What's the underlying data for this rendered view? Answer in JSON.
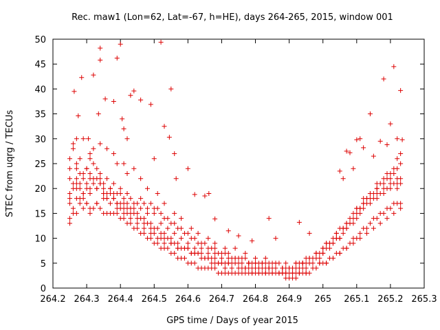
{
  "chart_data": {
    "type": "scatter",
    "title": "Rec. maw1 (Lon=62, Lat=-67, h=HE), days 264-265, 2015, window 001",
    "xlabel": "GPS time / Days of year 2015",
    "ylabel": "STEC from uqrg / TECUs",
    "xlim": [
      264.2,
      265.3
    ],
    "ylim": [
      0,
      50
    ],
    "xticks": [
      "264.2",
      "264.3",
      "264.4",
      "264.5",
      "264.6",
      "264.7",
      "264.8",
      "264.9",
      "265",
      "265.1",
      "265.2",
      "265.3"
    ],
    "yticks": [
      "0",
      "5",
      "10",
      "15",
      "20",
      "25",
      "30",
      "35",
      "40",
      "45",
      "50"
    ],
    "marker": "+",
    "color": "#dd0000",
    "grid": false,
    "series": [
      {
        "x": [
          264.25,
          264.25,
          264.26,
          264.27,
          264.28,
          264.29,
          264.3,
          264.31,
          264.32,
          264.33,
          264.34,
          264.35,
          264.36,
          264.37,
          264.38,
          264.39,
          264.4,
          264.41,
          264.42,
          264.43,
          264.44,
          264.45,
          264.46,
          264.47,
          264.48,
          264.49,
          264.5,
          264.51,
          264.52,
          264.53,
          264.54,
          264.55,
          264.56,
          264.57,
          264.58,
          264.59,
          264.6,
          264.61,
          264.62,
          264.63,
          264.64,
          264.65,
          264.66,
          264.67,
          264.68,
          264.69,
          264.7,
          264.71,
          264.72,
          264.73,
          264.74,
          264.75,
          264.76,
          264.77,
          264.78,
          264.79,
          264.8,
          264.81,
          264.82,
          264.83,
          264.84,
          264.85,
          264.86,
          264.87,
          264.88,
          264.89,
          264.9,
          264.91,
          264.92,
          264.93,
          264.94,
          264.95,
          264.96,
          264.97,
          264.98,
          264.99,
          265.0,
          265.01,
          265.02,
          265.03,
          265.04,
          265.05,
          265.06,
          265.07,
          265.08,
          265.09,
          265.1,
          265.11,
          265.12,
          265.13,
          265.14,
          265.15,
          265.16,
          265.17,
          265.18,
          265.19,
          265.2,
          265.21,
          265.22,
          265.23
        ],
        "y": [
          22,
          24,
          21,
          20,
          21,
          19,
          20,
          19,
          21,
          20,
          21,
          19,
          18,
          19,
          19,
          17,
          17,
          17,
          16,
          16,
          15,
          15,
          14,
          14,
          13,
          13,
          12,
          12,
          11,
          11,
          10,
          10,
          9,
          9,
          8,
          8,
          8,
          7,
          7,
          7,
          6,
          6,
          6,
          6,
          5,
          5,
          5,
          5,
          5,
          5,
          5,
          4,
          4,
          4,
          4,
          4,
          4,
          4,
          4,
          4,
          4,
          4,
          4,
          3,
          3,
          3,
          3,
          3,
          3,
          4,
          4,
          4,
          5,
          5,
          6,
          6,
          7,
          8,
          8,
          9,
          10,
          10,
          11,
          12,
          13,
          13,
          14,
          15,
          16,
          17,
          17,
          18,
          18,
          19,
          19,
          20,
          20,
          21,
          21,
          22
        ]
      },
      {
        "x": [
          264.25,
          264.26,
          264.27,
          264.28,
          264.29,
          264.3,
          264.31,
          264.32,
          264.33,
          264.34,
          264.35,
          264.36,
          264.37,
          264.38,
          264.39,
          264.4,
          264.41,
          264.42,
          264.43,
          264.44,
          264.45,
          264.46,
          264.47,
          264.48,
          264.49,
          264.5,
          264.51,
          264.52,
          264.53,
          264.54,
          264.55,
          264.56,
          264.57,
          264.58,
          264.59,
          264.6,
          264.61,
          264.62,
          264.63,
          264.64,
          264.65,
          264.66,
          264.67,
          264.68,
          264.69,
          264.7,
          264.71,
          264.72,
          264.73,
          264.74,
          264.75,
          264.76,
          264.77,
          264.78,
          264.79,
          264.8,
          264.81,
          264.82,
          264.83,
          264.84,
          264.85,
          264.86,
          264.87,
          264.88,
          264.89,
          264.9,
          264.91,
          264.92,
          264.93,
          264.94,
          264.95,
          264.96,
          264.97,
          264.98,
          264.99,
          265.0,
          265.01,
          265.02,
          265.03,
          265.04,
          265.05,
          265.06,
          265.07,
          265.08,
          265.09,
          265.1,
          265.11,
          265.12,
          265.13,
          265.14,
          265.15,
          265.16,
          265.17,
          265.18,
          265.19,
          265.2,
          265.21,
          265.22,
          265.23
        ],
        "y": [
          17,
          16,
          18,
          17,
          18,
          17,
          16,
          16,
          17,
          16,
          15,
          15,
          15,
          15,
          15,
          14,
          14,
          13,
          13,
          12,
          12,
          11,
          11,
          10,
          10,
          9,
          9,
          8,
          8,
          8,
          7,
          7,
          6,
          6,
          6,
          5,
          5,
          5,
          4,
          4,
          4,
          4,
          4,
          4,
          3,
          3,
          3,
          3,
          3,
          3,
          3,
          3,
          3,
          3,
          3,
          3,
          3,
          3,
          3,
          3,
          3,
          3,
          3,
          3,
          2,
          2,
          2,
          2,
          3,
          3,
          3,
          3,
          4,
          4,
          5,
          5,
          5,
          6,
          6,
          7,
          7,
          8,
          8,
          9,
          10,
          10,
          11,
          12,
          12,
          13,
          14,
          14,
          15,
          15,
          16,
          16,
          17,
          17,
          17
        ]
      },
      {
        "x": [
          264.25,
          264.26,
          264.27,
          264.28,
          264.29,
          264.3,
          264.31,
          264.32,
          264.33,
          264.34,
          264.35,
          264.36,
          264.37,
          264.38,
          264.39,
          264.4,
          264.41,
          264.42,
          264.43,
          264.44,
          264.45,
          264.46,
          264.47,
          264.48,
          264.49,
          264.5,
          264.51,
          264.52,
          264.53,
          264.54,
          264.55,
          264.56,
          264.57,
          264.58,
          264.59,
          264.6,
          264.61,
          264.62,
          264.63,
          264.64,
          264.65,
          264.66,
          264.67,
          264.68,
          264.69,
          264.7,
          264.71,
          264.72,
          264.73,
          264.74,
          264.75,
          264.76,
          264.77,
          264.78,
          264.79,
          264.8,
          264.81,
          264.82,
          264.83,
          264.84,
          264.85,
          264.86,
          264.87,
          264.88,
          264.89,
          264.9,
          264.91,
          264.92,
          264.93,
          264.94,
          264.95,
          264.96,
          264.97,
          264.98,
          264.99,
          265.0,
          265.01,
          265.02,
          265.03,
          265.04,
          265.05,
          265.06,
          265.07,
          265.08,
          265.09,
          265.1,
          265.11,
          265.12,
          265.13,
          265.14,
          265.15,
          265.16,
          265.17,
          265.18,
          265.19,
          265.2,
          265.21,
          265.22,
          265.23
        ],
        "y": [
          26,
          28,
          25,
          26,
          23,
          24,
          23,
          22,
          24,
          22,
          21,
          22,
          20,
          21,
          19,
          20,
          18,
          19,
          18,
          17,
          17,
          18,
          17,
          16,
          17,
          16,
          16,
          15,
          14,
          14,
          13,
          13,
          12,
          12,
          11,
          11,
          10,
          10,
          9,
          9,
          9,
          8,
          8,
          8,
          7,
          7,
          7,
          7,
          6,
          6,
          6,
          6,
          6,
          5,
          5,
          5,
          5,
          5,
          5,
          5,
          5,
          5,
          5,
          4,
          4,
          4,
          4,
          5,
          5,
          5,
          5,
          6,
          6,
          7,
          7,
          8,
          9,
          9,
          10,
          11,
          12,
          12,
          13,
          14,
          15,
          16,
          16,
          17,
          18,
          19,
          19,
          20,
          21,
          22,
          22,
          23,
          24,
          24,
          25
        ]
      },
      {
        "x": [
          264.25,
          264.27,
          264.29,
          264.31,
          264.33,
          264.35,
          264.37,
          264.39,
          264.41,
          264.43,
          264.45,
          264.47,
          264.49,
          264.51,
          264.53,
          264.55,
          264.57,
          264.59,
          264.61,
          264.63,
          264.65,
          264.67,
          264.69,
          264.71,
          264.73,
          264.75,
          264.77,
          264.79,
          264.81,
          264.83,
          264.85,
          264.87,
          264.89,
          264.91,
          264.93,
          264.95,
          264.97,
          264.99,
          265.01,
          265.03,
          265.05,
          265.07,
          265.09,
          265.11,
          265.13,
          265.15,
          265.17,
          265.19,
          265.21,
          265.23
        ],
        "y": [
          14,
          15,
          16,
          15,
          17,
          18,
          17,
          16,
          15,
          14,
          13,
          12,
          11,
          10,
          9,
          9,
          8,
          8,
          7,
          7,
          6,
          5,
          5,
          4,
          4,
          4,
          4,
          3,
          3,
          3,
          3,
          3,
          3,
          3,
          3,
          3,
          4,
          5,
          5,
          6,
          7,
          8,
          9,
          10,
          11,
          12,
          13,
          14,
          15,
          16
        ]
      },
      {
        "x": [
          264.26,
          264.27,
          264.29,
          264.31,
          264.32,
          264.34,
          264.36,
          264.38,
          264.39,
          264.41,
          264.42,
          264.44,
          264.46,
          264.48,
          264.51,
          264.53,
          264.56,
          264.58,
          264.61,
          264.63,
          264.66,
          264.68,
          264.71,
          264.74,
          264.77,
          264.8,
          264.83,
          264.86,
          264.89,
          264.92,
          264.95,
          264.98,
          265.01,
          265.04,
          265.07,
          265.1,
          265.13,
          265.16,
          265.19,
          265.22
        ],
        "y": [
          29,
          30,
          30,
          27,
          28,
          29,
          28,
          27,
          25,
          25,
          23,
          24,
          22,
          20,
          19,
          17,
          15,
          14,
          12,
          11,
          10,
          9,
          8,
          8,
          7,
          6,
          6,
          5,
          5,
          5,
          6,
          7,
          9,
          11,
          13,
          16,
          18,
          21,
          23,
          26
        ]
      },
      {
        "x": [
          264.25,
          264.27,
          264.28,
          264.3,
          264.31,
          264.33,
          264.34,
          264.35,
          264.36,
          264.38,
          264.39,
          264.4,
          264.41,
          264.42,
          264.43,
          264.45,
          264.47,
          264.49,
          264.5,
          264.52,
          264.53,
          264.55,
          264.57,
          264.6,
          264.62,
          264.64,
          264.66,
          264.68,
          264.7,
          264.72,
          264.75,
          264.78,
          264.81,
          264.84,
          264.86,
          264.88,
          264.91,
          264.94,
          264.97,
          265.0,
          265.03,
          265.05,
          265.07,
          265.09,
          265.11,
          265.12,
          265.14,
          265.16,
          265.18,
          265.2,
          265.21,
          265.22,
          265.23
        ],
        "y": [
          19,
          22,
          20,
          21,
          22,
          20,
          21,
          20,
          19,
          18,
          17,
          16,
          16,
          15,
          15,
          14,
          13,
          12,
          11,
          10,
          10,
          9,
          8,
          8,
          7,
          7,
          6,
          6,
          5,
          5,
          5,
          5,
          4,
          4,
          4,
          4,
          4,
          5,
          6,
          7,
          9,
          10,
          12,
          14,
          16,
          18,
          19,
          20,
          21,
          22,
          23,
          22,
          21
        ]
      },
      {
        "x": [
          264.25,
          264.25,
          264.26,
          264.26,
          264.27,
          264.27,
          264.28,
          264.28,
          264.29,
          264.29,
          264.3,
          264.3,
          264.31,
          264.31,
          264.32,
          264.33,
          264.34,
          264.35,
          264.36,
          264.37,
          264.38,
          264.4,
          264.42,
          264.44,
          264.46,
          264.48,
          264.5,
          264.52,
          264.54,
          264.56,
          264.58,
          264.6,
          264.62,
          264.64,
          264.66,
          264.68,
          264.7,
          264.72,
          264.74,
          264.76,
          264.78,
          264.8,
          264.82,
          264.84,
          264.86,
          264.88,
          264.9,
          264.92,
          264.94,
          264.96,
          264.98,
          265.0,
          265.02,
          265.04,
          265.06,
          265.08,
          265.1,
          265.12,
          265.14,
          265.16,
          265.18,
          265.2,
          265.22
        ],
        "y": [
          18,
          13,
          20,
          15,
          21,
          24,
          23,
          18,
          22,
          19,
          24,
          17,
          20,
          26,
          25,
          22,
          23,
          19,
          18,
          20,
          18,
          19,
          17,
          16,
          16,
          15,
          15,
          13,
          12,
          11,
          10,
          9,
          8,
          8,
          7,
          7,
          6,
          6,
          6,
          5,
          5,
          5,
          5,
          4,
          4,
          4,
          4,
          4,
          5,
          6,
          7,
          8,
          9,
          10,
          12,
          13,
          15,
          17,
          18,
          19,
          20,
          21,
          20
        ]
      },
      {
        "x": [
          264.263,
          264.275,
          264.285,
          264.305,
          264.32,
          264.335,
          264.34,
          264.34,
          264.355,
          264.38,
          264.39,
          264.4,
          264.405,
          264.41,
          264.42,
          264.43,
          264.44,
          264.46,
          264.49,
          264.5,
          264.52,
          264.53,
          264.545,
          264.55,
          264.56,
          264.565,
          264.6,
          264.62,
          264.65,
          264.662,
          264.68,
          264.72,
          264.75,
          264.79,
          264.84,
          264.86,
          264.93,
          264.96,
          265.05,
          265.06,
          265.07,
          265.08,
          265.09,
          265.1,
          265.11,
          265.12,
          265.14,
          265.15,
          265.17,
          265.18,
          265.19,
          265.2,
          265.21,
          265.22,
          265.23,
          265.235,
          265.23
        ],
        "y": [
          39.5,
          34.6,
          42.3,
          30.0,
          42.8,
          35.0,
          48.2,
          45.8,
          38.0,
          37.5,
          46.2,
          49.0,
          34.0,
          32.0,
          30.0,
          38.7,
          39.6,
          37.8,
          36.9,
          26.0,
          49.4,
          32.5,
          30.3,
          40.0,
          27.0,
          22.0,
          24.0,
          18.8,
          18.5,
          19.0,
          13.9,
          11.5,
          10.5,
          9.5,
          14.0,
          10.0,
          13.2,
          11.0,
          23.5,
          22.0,
          27.5,
          27.2,
          24.0,
          29.8,
          30.0,
          28.2,
          35.0,
          26.5,
          29.5,
          42.0,
          28.8,
          33.0,
          44.5,
          30.0,
          39.7,
          29.8,
          27.0
        ]
      }
    ]
  }
}
